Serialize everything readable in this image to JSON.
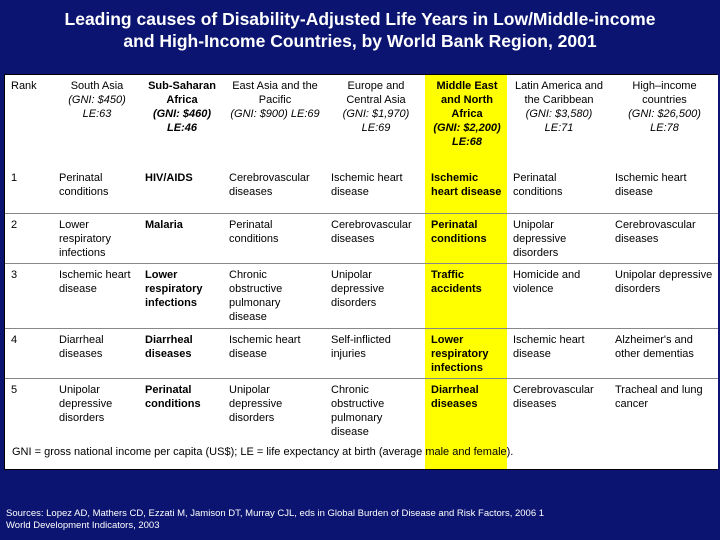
{
  "title": {
    "line1": "Leading causes of Disability-Adjusted Life Years in Low/Middle-income",
    "line2": "and High-Income Countries, by World Bank Region, 2001"
  },
  "table": {
    "headers": [
      {
        "name": "Rank",
        "gni": ""
      },
      {
        "name": "South Asia",
        "gni": "(GNI: $450) LE:63"
      },
      {
        "name": "Sub-Saharan Africa",
        "gni": "(GNI: $460) LE:46"
      },
      {
        "name": "East Asia and the Pacific",
        "gni": "(GNI: $900) LE:69"
      },
      {
        "name": "Europe and Central Asia",
        "gni": "(GNI: $1,970) LE:69"
      },
      {
        "name": "Middle East and North Africa",
        "gni": "(GNI: $2,200) LE:68"
      },
      {
        "name": "Latin America and the Caribbean",
        "gni": "(GNI: $3,580) LE:71"
      },
      {
        "name": "High–income countries",
        "gni": "(GNI: $26,500) LE:78"
      }
    ],
    "rows": [
      [
        "1",
        "Perinatal conditions",
        "HIV/AIDS",
        "Cerebrovascular diseases",
        "Ischemic heart disease",
        "Ischemic heart disease",
        "Perinatal conditions",
        "Ischemic heart disease"
      ],
      [
        "2",
        "Lower respiratory infections",
        "Malaria",
        "Perinatal conditions",
        "Cerebrovascular diseases",
        "Perinatal conditions",
        "Unipolar depressive disorders",
        "Cerebrovascular diseases"
      ],
      [
        "3",
        "Ischemic heart disease",
        "Lower respiratory infections",
        "Chronic obstructive pulmonary disease",
        "Unipolar depressive disorders",
        "Traffic accidents",
        "Homicide and violence",
        "Unipolar depressive disorders"
      ],
      [
        "4",
        "Diarrheal diseases",
        "Diarrheal diseases",
        "Ischemic heart disease",
        "Self-inflicted injuries",
        "Lower respiratory infections",
        "Ischemic heart disease",
        "Alzheimer's and other dementias"
      ],
      [
        "5",
        "Unipolar depressive disorders",
        "Perinatal conditions",
        "Unipolar depressive disorders",
        "Chronic obstructive pulmonary disease",
        "Diarrheal diseases",
        "Cerebrovascular diseases",
        "Tracheal and lung cancer"
      ]
    ],
    "footnote": "GNI = gross national income per capita (US$); LE = life expectancy at birth (average male and female)."
  },
  "sources": {
    "line1": "Sources: Lopez AD, Mathers CD, Ezzati M, Jamison DT, Murray CJL, eds in Global Burden of Disease and Risk Factors, 2006 1",
    "line2": "World Development Indicators, 2003"
  },
  "colors": {
    "background": "#0b1470",
    "highlight": "#ffff00",
    "cell": "#ffffff"
  }
}
